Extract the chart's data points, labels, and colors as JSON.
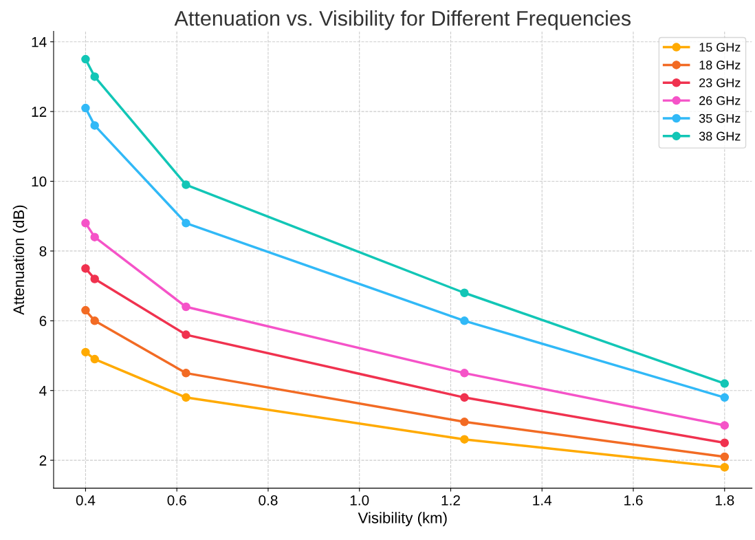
{
  "chart_data": {
    "type": "line",
    "title": "Attenuation vs. Visibility for Different Frequencies",
    "xlabel": "Visibility (km)",
    "ylabel": "Attenuation (dB)",
    "x": [
      0.4,
      0.42,
      0.62,
      1.23,
      1.8
    ],
    "series": [
      {
        "name": "15 GHz",
        "color": "#ffaa00",
        "values": [
          5.1,
          4.9,
          3.8,
          2.6,
          1.8
        ]
      },
      {
        "name": "18 GHz",
        "color": "#f26b24",
        "values": [
          6.3,
          6.0,
          4.5,
          3.1,
          2.1
        ]
      },
      {
        "name": "23 GHz",
        "color": "#f0324f",
        "values": [
          7.5,
          7.2,
          5.6,
          3.8,
          2.5
        ]
      },
      {
        "name": "26 GHz",
        "color": "#f553c8",
        "values": [
          8.8,
          8.4,
          6.4,
          4.5,
          3.0
        ]
      },
      {
        "name": "35 GHz",
        "color": "#31b9f7",
        "values": [
          12.1,
          11.6,
          8.8,
          6.0,
          3.8
        ]
      },
      {
        "name": "38 GHz",
        "color": "#12c6b6",
        "values": [
          13.5,
          13.0,
          9.9,
          6.8,
          4.2
        ]
      }
    ],
    "xlim": [
      0.33,
      1.86
    ],
    "ylim": [
      1.2,
      14.3
    ],
    "xticks": [
      0.4,
      0.6,
      0.8,
      {
        "value": 1,
        "label": "1.0"
      },
      1.2,
      1.4,
      1.6,
      1.8
    ],
    "yticks": [
      2,
      4,
      6,
      8,
      10,
      12,
      14
    ],
    "grid": true,
    "legend": "top right",
    "marker": "circle",
    "line_style": "solid"
  }
}
